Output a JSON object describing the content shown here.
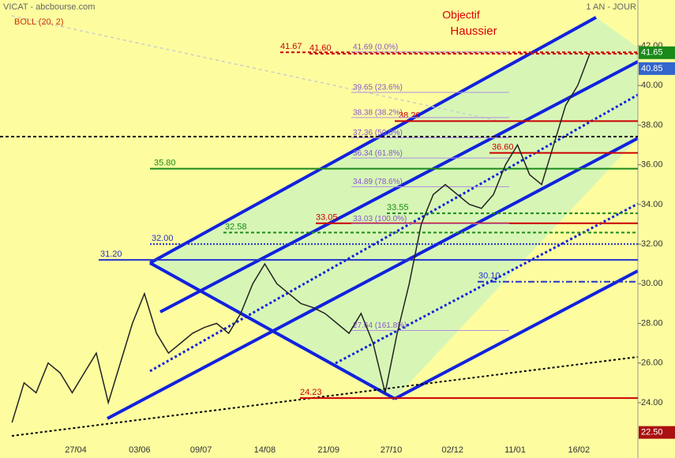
{
  "chart_data": {
    "type": "line",
    "title": "VICAT - abcbourse.com",
    "period": "1 AN - JOUR",
    "indicator": "BOLL (20, 2)",
    "annotations": [
      "Objectif",
      "Haussier"
    ],
    "x": [
      0,
      1,
      2,
      3,
      4,
      5,
      6,
      7,
      8,
      9,
      10,
      11,
      12,
      13,
      14,
      15,
      16,
      17,
      18,
      19,
      20,
      21,
      22,
      23,
      24,
      25,
      26,
      27,
      28,
      29,
      30,
      31,
      32,
      33,
      34,
      35,
      36,
      37,
      38,
      39,
      40,
      41,
      42,
      43,
      44,
      45,
      46,
      47,
      48
    ],
    "series": [
      {
        "name": "VICAT",
        "color": "#222222",
        "values": [
          23.0,
          25.0,
          24.5,
          26.0,
          25.5,
          24.5,
          25.5,
          26.5,
          24.0,
          26.0,
          28.0,
          29.5,
          27.5,
          26.5,
          27.0,
          27.5,
          27.8,
          28.0,
          27.5,
          28.5,
          30.0,
          31.0,
          30.0,
          29.5,
          29.0,
          28.8,
          28.5,
          28.0,
          27.5,
          28.5,
          27.0,
          24.5,
          27.5,
          30.0,
          33.0,
          34.5,
          35.0,
          34.5,
          34.0,
          33.8,
          34.5,
          36.0,
          37.0,
          35.5,
          35.0,
          37.0,
          39.0,
          40.0,
          41.6
        ]
      }
    ],
    "xlim": [
      -1,
      52
    ],
    "xticks": [
      {
        "value": 5.3,
        "label": "27/04"
      },
      {
        "value": 10.6,
        "label": "03/06"
      },
      {
        "value": 15.7,
        "label": "09/07"
      },
      {
        "value": 21.0,
        "label": "14/08"
      },
      {
        "value": 26.3,
        "label": "21/09"
      },
      {
        "value": 31.5,
        "label": "27/10"
      },
      {
        "value": 36.6,
        "label": "02/12"
      },
      {
        "value": 41.8,
        "label": "11/01"
      },
      {
        "value": 47.1,
        "label": "16/02"
      }
    ],
    "ylim": [
      21.21,
      44.31
    ],
    "yticks": [
      {
        "value": 24,
        "label": "24.00"
      },
      {
        "value": 26,
        "label": "26.00"
      },
      {
        "value": 28,
        "label": "28.00"
      },
      {
        "value": 30,
        "label": "30.00"
      },
      {
        "value": 32,
        "label": "32.00"
      },
      {
        "value": 34,
        "label": "34.00"
      },
      {
        "value": 36,
        "label": "36.00"
      },
      {
        "value": 38,
        "label": "38.00"
      },
      {
        "value": 40,
        "label": "40.00"
      },
      {
        "value": 42,
        "label": "42.00"
      }
    ],
    "levels": [
      {
        "label": "41.67",
        "value": 41.67,
        "color": "#cc0000",
        "style": "dashed"
      },
      {
        "label": "41.60",
        "value": 41.6,
        "color": "#cc0000",
        "style": "dashed"
      },
      {
        "label": "38.20",
        "value": 38.2,
        "color": "#cc0000",
        "style": "solid"
      },
      {
        "label": "36.60",
        "value": 36.6,
        "color": "#cc0000",
        "style": "solid"
      },
      {
        "label": "35.80",
        "value": 35.8,
        "color": "#1a8a1a",
        "style": "solid"
      },
      {
        "label": "33.55",
        "value": 33.55,
        "color": "#1a8a1a",
        "style": "dashed"
      },
      {
        "label": "33.05",
        "value": 33.05,
        "color": "#cc0000",
        "style": "solid"
      },
      {
        "label": "32.58",
        "value": 32.58,
        "color": "#1a8a1a",
        "style": "dashed"
      },
      {
        "label": "32.00",
        "value": 32.0,
        "color": "#2233cc",
        "style": "dotted"
      },
      {
        "label": "31.20",
        "value": 31.2,
        "color": "#2233cc",
        "style": "solid"
      },
      {
        "label": "30.10",
        "value": 30.1,
        "color": "#2233cc",
        "style": "dashdot"
      },
      {
        "label": "24.23",
        "value": 24.23,
        "color": "#cc0000",
        "style": "solid"
      },
      {
        "value": 37.42,
        "color": "#000000",
        "style": "dashed"
      }
    ],
    "fibonacci": [
      {
        "label": "41.69 (0.0%)",
        "value": 41.69
      },
      {
        "label": "39.65 (23.6%)",
        "value": 39.65
      },
      {
        "label": "38.38 (38.2%)",
        "value": 38.38
      },
      {
        "label": "37.36 (50.0%)",
        "value": 37.36
      },
      {
        "label": "36.34 (61.8%)",
        "value": 36.34
      },
      {
        "label": "34.89 (78.6%)",
        "value": 34.89
      },
      {
        "label": "33.03 (100.0%)",
        "value": 33.03
      },
      {
        "label": "27.64 (161.8%)",
        "value": 27.64
      }
    ],
    "price_tags": [
      {
        "label": "41.65",
        "value": 41.65,
        "color": "#1a8a1a"
      },
      {
        "label": "40.85",
        "value": 40.85,
        "color": "#3366cc"
      },
      {
        "label": "22.50",
        "value": 22.5,
        "color": "#aa1111"
      }
    ]
  }
}
